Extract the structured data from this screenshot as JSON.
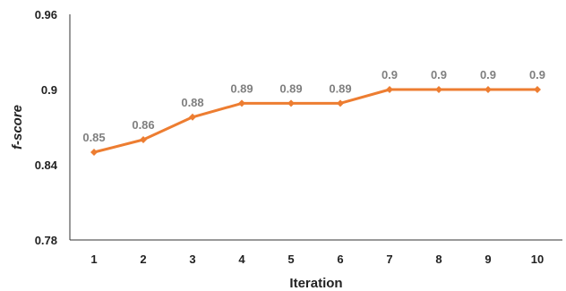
{
  "chart_data": {
    "type": "line",
    "xlabel": "Iteration",
    "ylabel": "f-score",
    "ylim": [
      0.78,
      0.96
    ],
    "yticks": [
      "0.78",
      "0.84",
      "0.9",
      "0.96"
    ],
    "categories": [
      "1",
      "2",
      "3",
      "4",
      "5",
      "6",
      "7",
      "8",
      "9",
      "10"
    ],
    "series": [
      {
        "values": [
          0.85,
          0.86,
          0.878,
          0.889,
          0.889,
          0.889,
          0.9,
          0.9,
          0.9,
          0.9
        ],
        "labels": [
          "0.85",
          "0.86",
          "0.88",
          "0.89",
          "0.89",
          "0.89",
          "0.9",
          "0.9",
          "0.9",
          "0.9"
        ],
        "color": "#ed7d31"
      }
    ],
    "label_color": "#7f7f7f",
    "axis_color": "#222222",
    "grid": false,
    "legend": "none"
  }
}
